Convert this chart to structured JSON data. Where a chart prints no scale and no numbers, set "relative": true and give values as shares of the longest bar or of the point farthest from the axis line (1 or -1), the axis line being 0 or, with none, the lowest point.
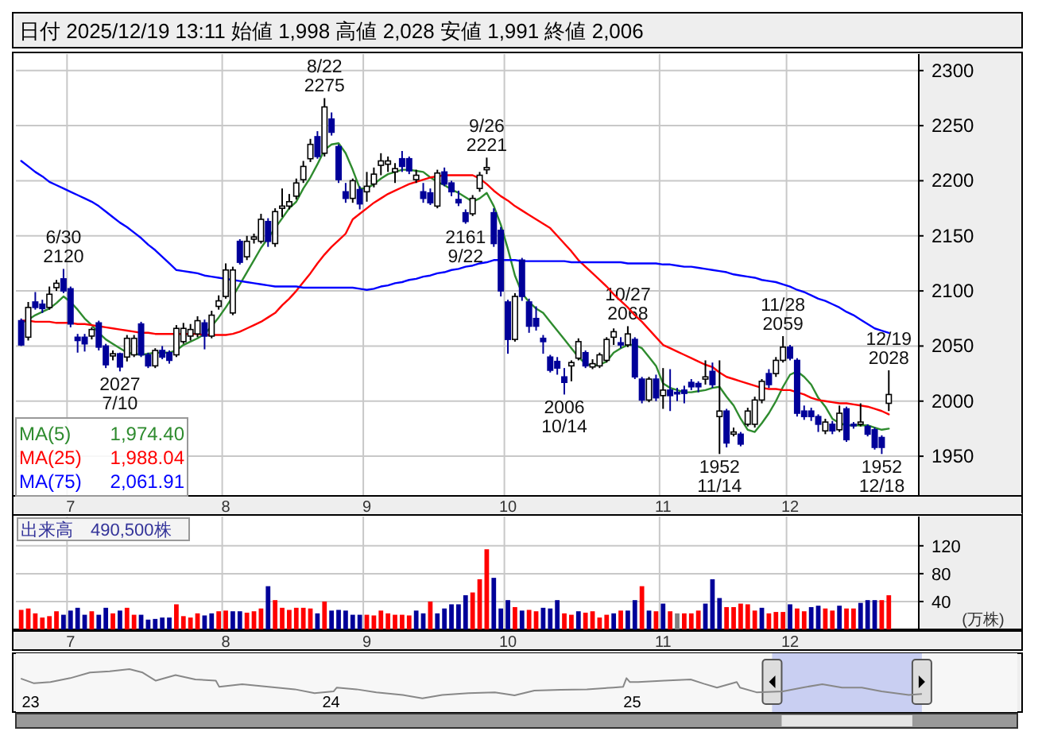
{
  "chart_data": [
    {
      "type": "candlestick",
      "title": "日付 2025/12/19 13:11 始値 1,998 高値 2,028 安値 1,991 終値 2,006",
      "categories": [
        null,
        null,
        null,
        null,
        null,
        null,
        null,
        "7",
        null,
        null,
        null,
        null,
        null,
        null,
        null,
        null,
        null,
        null,
        null,
        null,
        null,
        null,
        null,
        null,
        null,
        null,
        null,
        null,
        null,
        "8",
        null,
        null,
        null,
        null,
        null,
        null,
        null,
        null,
        null,
        null,
        null,
        null,
        null,
        null,
        null,
        null,
        null,
        null,
        null,
        "9",
        null,
        null,
        null,
        null,
        null,
        null,
        null,
        null,
        null,
        null,
        null,
        null,
        null,
        null,
        null,
        null,
        null,
        null,
        null,
        "10",
        null,
        null,
        null,
        null,
        null,
        null,
        null,
        null,
        null,
        null,
        null,
        null,
        null,
        null,
        null,
        null,
        null,
        null,
        null,
        null,
        null,
        "11",
        null,
        null,
        null,
        null,
        null,
        null,
        null,
        null,
        null,
        null,
        null,
        null,
        null,
        null,
        null,
        null,
        null,
        "12",
        null,
        null,
        null,
        null,
        null,
        null,
        null,
        null,
        null,
        null,
        null,
        null,
        null,
        null
      ],
      "ohlc": [
        [
          2073,
          2075,
          2050,
          2051
        ],
        [
          2058,
          2090,
          2055,
          2085
        ],
        [
          2090,
          2099,
          2083,
          2085
        ],
        [
          2088,
          2092,
          2080,
          2084
        ],
        [
          2085,
          2104,
          2083,
          2097
        ],
        [
          2103,
          2110,
          2100,
          2107
        ],
        [
          2111,
          2120,
          2098,
          2100
        ],
        [
          2102,
          2104,
          2067,
          2070
        ],
        [
          2058,
          2061,
          2044,
          2055
        ],
        [
          2058,
          2061,
          2045,
          2052
        ],
        [
          2059,
          2067,
          2056,
          2065
        ],
        [
          2071,
          2073,
          2046,
          2049
        ],
        [
          2050,
          2052,
          2030,
          2033
        ],
        [
          2041,
          2046,
          2037,
          2043
        ],
        [
          2043,
          2044,
          2027,
          2031
        ],
        [
          2040,
          2060,
          2036,
          2057
        ],
        [
          2042,
          2060,
          2040,
          2057
        ],
        [
          2070,
          2072,
          2040,
          2042
        ],
        [
          2042,
          2044,
          2030,
          2032
        ],
        [
          2032,
          2048,
          2030,
          2046
        ],
        [
          2046,
          2050,
          2038,
          2040
        ],
        [
          2044,
          2046,
          2034,
          2037
        ],
        [
          2042,
          2069,
          2040,
          2066
        ],
        [
          2054,
          2071,
          2052,
          2066
        ],
        [
          2059,
          2070,
          2055,
          2065
        ],
        [
          2061,
          2077,
          2058,
          2073
        ],
        [
          2071,
          2074,
          2047,
          2059
        ],
        [
          2059,
          2082,
          2057,
          2078
        ],
        [
          2086,
          2096,
          2083,
          2091
        ],
        [
          2095,
          2125,
          2093,
          2119
        ],
        [
          2080,
          2122,
          2078,
          2119
        ],
        [
          2145,
          2147,
          2124,
          2126
        ],
        [
          2131,
          2150,
          2128,
          2145
        ],
        [
          2147,
          2152,
          2143,
          2149
        ],
        [
          2145,
          2170,
          2143,
          2165
        ],
        [
          2163,
          2166,
          2140,
          2145
        ],
        [
          2143,
          2175,
          2140,
          2172
        ],
        [
          2175,
          2193,
          2167,
          2177
        ],
        [
          2177,
          2188,
          2174,
          2181
        ],
        [
          2186,
          2202,
          2183,
          2198
        ],
        [
          2201,
          2218,
          2198,
          2213
        ],
        [
          2220,
          2238,
          2217,
          2233
        ],
        [
          2240,
          2245,
          2220,
          2222
        ],
        [
          2225,
          2275,
          2222,
          2267
        ],
        [
          2256,
          2262,
          2241,
          2244
        ],
        [
          2231,
          2233,
          2198,
          2201
        ],
        [
          2190,
          2198,
          2180,
          2184
        ],
        [
          2184,
          2202,
          2180,
          2200
        ],
        [
          2192,
          2195,
          2174,
          2179
        ],
        [
          2190,
          2208,
          2181,
          2195
        ],
        [
          2197,
          2212,
          2194,
          2206
        ],
        [
          2214,
          2225,
          2205,
          2218
        ],
        [
          2215,
          2222,
          2208,
          2218
        ],
        [
          2208,
          2216,
          2198,
          2211
        ],
        [
          2220,
          2227,
          2208,
          2213
        ],
        [
          2220,
          2222,
          2206,
          2209
        ],
        [
          2201,
          2210,
          2198,
          2205
        ],
        [
          2190,
          2198,
          2180,
          2184
        ],
        [
          2189,
          2193,
          2178,
          2180
        ],
        [
          2177,
          2210,
          2175,
          2207
        ],
        [
          2208,
          2212,
          2195,
          2197
        ],
        [
          2198,
          2200,
          2186,
          2190
        ],
        [
          2183,
          2191,
          2177,
          2180
        ],
        [
          2171,
          2174,
          2161,
          2163
        ],
        [
          2170,
          2187,
          2168,
          2184
        ],
        [
          2193,
          2208,
          2190,
          2205
        ],
        [
          2210,
          2221,
          2206,
          2212
        ],
        [
          2171,
          2175,
          2140,
          2143
        ],
        [
          2155,
          2158,
          2095,
          2100
        ],
        [
          2090,
          2092,
          2043,
          2056
        ],
        [
          2056,
          2098,
          2054,
          2095
        ],
        [
          2128,
          2130,
          2091,
          2095
        ],
        [
          2090,
          2093,
          2062,
          2068
        ],
        [
          2075,
          2086,
          2064,
          2068
        ],
        [
          2057,
          2060,
          2043,
          2054
        ],
        [
          2040,
          2042,
          2026,
          2028
        ],
        [
          2036,
          2040,
          2024,
          2030
        ],
        [
          2022,
          2030,
          2006,
          2017
        ],
        [
          2032,
          2037,
          2018,
          2035
        ],
        [
          2039,
          2057,
          2037,
          2054
        ],
        [
          2044,
          2046,
          2030,
          2032
        ],
        [
          2031,
          2038,
          2029,
          2034
        ],
        [
          2032,
          2044,
          2030,
          2042
        ],
        [
          2037,
          2058,
          2035,
          2056
        ],
        [
          2058,
          2066,
          2051,
          2063
        ],
        [
          2053,
          2058,
          2048,
          2051
        ],
        [
          2051,
          2068,
          2049,
          2061
        ],
        [
          2056,
          2058,
          2020,
          2022
        ],
        [
          2020,
          2022,
          1998,
          2001
        ],
        [
          2001,
          2022,
          1999,
          2020
        ],
        [
          2020,
          2024,
          2000,
          2003
        ],
        [
          2005,
          2030,
          1993,
          2010
        ],
        [
          2010,
          2029,
          1991,
          2005
        ],
        [
          2008,
          2012,
          2000,
          2007
        ],
        [
          2010,
          2014,
          1998,
          2007
        ],
        [
          2017,
          2020,
          2010,
          2013
        ],
        [
          2016,
          2018,
          2008,
          2013
        ],
        [
          2020,
          2037,
          2015,
          2022
        ],
        [
          2027,
          2035,
          2012,
          2015
        ],
        [
          1986,
          2037,
          1952,
          1991
        ],
        [
          1991,
          1993,
          1958,
          1962
        ],
        [
          1970,
          1976,
          1968,
          1972
        ],
        [
          1970,
          1972,
          1959,
          1961
        ],
        [
          1979,
          1994,
          1977,
          1991
        ],
        [
          1979,
          2004,
          1976,
          2001
        ],
        [
          2001,
          2020,
          1998,
          2018
        ],
        [
          2025,
          2029,
          2012,
          2015
        ],
        [
          2025,
          2040,
          2022,
          2037
        ],
        [
          2037,
          2059,
          2035,
          2049
        ],
        [
          2049,
          2051,
          2037,
          2039
        ],
        [
          2037,
          2039,
          1986,
          1989
        ],
        [
          1991,
          1996,
          1983,
          1986
        ],
        [
          1991,
          1994,
          1982,
          1986
        ],
        [
          1986,
          1988,
          1972,
          1979
        ],
        [
          1973,
          1984,
          1970,
          1981
        ],
        [
          1979,
          1982,
          1970,
          1973
        ],
        [
          1974,
          1996,
          1972,
          1989
        ],
        [
          1993,
          1995,
          1963,
          1965
        ],
        [
          1979,
          1981,
          1975,
          1978
        ],
        [
          1979,
          1998,
          1977,
          1981
        ],
        [
          1977,
          1979,
          1968,
          1970
        ],
        [
          1974,
          1976,
          1956,
          1958
        ],
        [
          1967,
          1969,
          1952,
          1958
        ],
        [
          1998,
          2028,
          1991,
          2006
        ]
      ],
      "series": [
        {
          "name": "MA(5)",
          "type": "line",
          "color": "#2e8b2e",
          "values": [
            2071,
            2074,
            2078,
            2081,
            2084,
            2089,
            2095,
            2090,
            2083,
            2075,
            2069,
            2062,
            2056,
            2052,
            2048,
            2044,
            2043,
            2042,
            2043,
            2044,
            2044,
            2044,
            2046,
            2051,
            2054,
            2057,
            2061,
            2068,
            2076,
            2085,
            2095,
            2106,
            2117,
            2128,
            2139,
            2148,
            2157,
            2166,
            2175,
            2181,
            2193,
            2203,
            2215,
            2228,
            2233,
            2234,
            2225,
            2210,
            2193,
            2193,
            2197,
            2202,
            2206,
            2208,
            2210,
            2210,
            2209,
            2208,
            2203,
            2199,
            2196,
            2192,
            2189,
            2185,
            2181,
            2184,
            2189,
            2177,
            2160,
            2138,
            2114,
            2098,
            2090,
            2084,
            2080,
            2072,
            2064,
            2056,
            2048,
            2040,
            2034,
            2032,
            2033,
            2036,
            2044,
            2048,
            2051,
            2051,
            2048,
            2040,
            2032,
            2016,
            2012,
            2010,
            2008,
            2008,
            2009,
            2010,
            2012,
            2013,
            2004,
            1996,
            1984,
            1974,
            1972,
            1980,
            1989,
            2000,
            2013,
            2024,
            2027,
            2022,
            2015,
            2003,
            1995,
            1984,
            1980,
            1978,
            1978,
            1978,
            1978,
            1976,
            1974,
            1975
          ]
        },
        {
          "name": "MA(25)",
          "type": "line",
          "color": "#ff0000",
          "values": [
            2073,
            2073,
            2072,
            2072,
            2072,
            2071,
            2071,
            2071,
            2070,
            2070,
            2069,
            2068,
            2067,
            2066,
            2065,
            2064,
            2063,
            2062,
            2062,
            2061,
            2061,
            2061,
            2061,
            2061,
            2061,
            2061,
            2060,
            2060,
            2060,
            2060,
            2061,
            2063,
            2066,
            2069,
            2072,
            2076,
            2080,
            2087,
            2093,
            2100,
            2108,
            2116,
            2125,
            2133,
            2140,
            2146,
            2152,
            2165,
            2170,
            2175,
            2180,
            2184,
            2188,
            2191,
            2194,
            2197,
            2199,
            2201,
            2203,
            2204,
            2205,
            2205,
            2205,
            2205,
            2205,
            2202,
            2197,
            2191,
            2186,
            2182,
            2177,
            2173,
            2169,
            2165,
            2161,
            2157,
            2150,
            2143,
            2136,
            2128,
            2122,
            2116,
            2110,
            2104,
            2097,
            2091,
            2085,
            2078,
            2072,
            2065,
            2058,
            2051,
            2048,
            2045,
            2042,
            2039,
            2036,
            2033,
            2031,
            2026,
            2022,
            2020,
            2018,
            2016,
            2014,
            2012,
            2011,
            2011,
            2010,
            2010,
            2008,
            2006,
            2003,
            2001,
            2000,
            1999,
            1998,
            1998,
            1997,
            1996,
            1995,
            1993,
            1991,
            1988
          ]
        },
        {
          "name": "MA(75)",
          "type": "line",
          "color": "#0000ff",
          "values": [
            2218,
            2213,
            2208,
            2204,
            2199,
            2196,
            2193,
            2190,
            2187,
            2184,
            2181,
            2177,
            2172,
            2167,
            2162,
            2158,
            2153,
            2148,
            2142,
            2137,
            2131,
            2125,
            2119,
            2118,
            2117,
            2116,
            2114,
            2113,
            2112,
            2111,
            2110,
            2109,
            2108,
            2107,
            2106,
            2105,
            2104,
            2104,
            2104,
            2104,
            2103,
            2103,
            2103,
            2103,
            2103,
            2103,
            2103,
            2103,
            2102,
            2101,
            2102,
            2104,
            2105,
            2107,
            2108,
            2110,
            2111,
            2113,
            2114,
            2116,
            2117,
            2119,
            2120,
            2122,
            2123,
            2125,
            2126,
            2128,
            2128,
            2128,
            2128,
            2127,
            2127,
            2127,
            2127,
            2127,
            2127,
            2127,
            2126,
            2126,
            2126,
            2126,
            2126,
            2126,
            2126,
            2126,
            2125,
            2125,
            2125,
            2125,
            2125,
            2124,
            2124,
            2123,
            2122,
            2122,
            2121,
            2120,
            2119,
            2118,
            2117,
            2115,
            2114,
            2113,
            2112,
            2110,
            2109,
            2108,
            2106,
            2104,
            2101,
            2099,
            2096,
            2093,
            2091,
            2088,
            2085,
            2081,
            2078,
            2074,
            2070,
            2066,
            2064,
            2062
          ]
        }
      ],
      "ylim": [
        1914,
        2315
      ],
      "yticks": [
        1950,
        2000,
        2050,
        2100,
        2150,
        2200,
        2250,
        2300
      ],
      "grid": true,
      "legend": "bottom left",
      "annotations": [
        {
          "text": "6/30\n2120",
          "y": 2120
        },
        {
          "text": "2027\n7/10",
          "y": 2027
        },
        {
          "text": "8/22\n2275",
          "y": 2275
        },
        {
          "text": "2161\n9/22",
          "y": 2161
        },
        {
          "text": "9/26\n2221",
          "y": 2221
        },
        {
          "text": "2006\n10/14",
          "y": 2006
        },
        {
          "text": "10/27\n2068",
          "y": 2068
        },
        {
          "text": "1952\n11/14",
          "y": 1952
        },
        {
          "text": "11/28\n2059",
          "y": 2059
        },
        {
          "text": "1952\n12/18",
          "y": 1952
        },
        {
          "text": "12/19\n2028",
          "y": 2028
        },
        "1,974.40",
        "1,988.04",
        "2,061.91"
      ]
    },
    {
      "type": "bar",
      "title": "出来高　490,500株",
      "ylabel": "(万株)",
      "categories": [
        null,
        null,
        null,
        null,
        null,
        null,
        null,
        "7",
        null,
        null,
        null,
        null,
        null,
        null,
        null,
        null,
        null,
        null,
        null,
        null,
        null,
        null,
        null,
        null,
        null,
        null,
        null,
        null,
        null,
        "8",
        null,
        null,
        null,
        null,
        null,
        null,
        null,
        null,
        null,
        null,
        null,
        null,
        null,
        null,
        null,
        null,
        null,
        null,
        null,
        "9",
        null,
        null,
        null,
        null,
        null,
        null,
        null,
        null,
        null,
        null,
        null,
        null,
        null,
        null,
        null,
        null,
        null,
        null,
        null,
        "10",
        null,
        null,
        null,
        null,
        null,
        null,
        null,
        null,
        null,
        null,
        null,
        null,
        null,
        null,
        null,
        null,
        null,
        null,
        null,
        null,
        null,
        "11",
        null,
        null,
        null,
        null,
        null,
        null,
        null,
        null,
        null,
        null,
        null,
        null,
        null,
        null,
        null,
        null,
        null,
        "12",
        null,
        null,
        null,
        null,
        null,
        null,
        null,
        null,
        null,
        null,
        null,
        null,
        null,
        null
      ],
      "values": [
        28,
        30,
        23,
        17,
        19,
        26,
        21,
        27,
        31,
        21,
        26,
        21,
        31,
        23,
        27,
        31,
        21,
        21,
        14,
        15,
        17,
        17,
        36,
        19,
        17,
        23,
        20,
        23,
        26,
        27,
        26,
        26,
        24,
        26,
        30,
        62,
        42,
        31,
        28,
        31,
        31,
        30,
        23,
        40,
        27,
        28,
        27,
        21,
        21,
        21,
        20,
        27,
        23,
        21,
        21,
        20,
        27,
        23,
        40,
        23,
        30,
        36,
        36,
        49,
        53,
        72,
        115,
        74,
        30,
        42,
        32,
        27,
        28,
        26,
        31,
        30,
        42,
        23,
        21,
        26,
        24,
        26,
        17,
        21,
        23,
        27,
        27,
        42,
        62,
        27,
        26,
        37,
        26,
        23,
        23,
        23,
        27,
        37,
        72,
        45,
        32,
        32,
        37,
        36,
        27,
        31,
        23,
        25,
        25,
        36,
        30,
        26,
        32,
        34,
        30,
        27,
        34,
        30,
        30,
        38,
        42,
        42,
        42,
        49
      ],
      "colors": [
        "#ff0000",
        "#ff0000",
        "#ff0000",
        "#ff0000",
        "#ff0000",
        "#ff0000",
        "#000099",
        "#000099",
        "#000099",
        "#000099",
        "#ff0000",
        "#000099",
        "#000099",
        "#ff0000",
        "#000099",
        "#ff0000",
        "#ff0000",
        "#000099",
        "#000099",
        "#000099",
        "#000099",
        "#000099",
        "#ff0000",
        "#ff0000",
        "#ff0000",
        "#ff0000",
        "#000099",
        "#000099",
        "#ff0000",
        "#ff0000",
        "#000099",
        "#000099",
        "#ff0000",
        "#ff0000",
        "#ff0000",
        "#000099",
        "#ff0000",
        "#ff0000",
        "#ff0000",
        "#ff0000",
        "#ff0000",
        "#ff0000",
        "#000099",
        "#ff0000",
        "#000099",
        "#000099",
        "#000099",
        "#000099",
        "#000099",
        "#ff0000",
        "#ff0000",
        "#ff0000",
        "#ff0000",
        "#ff0000",
        "#ff0000",
        "#ff0000",
        "#000099",
        "#000099",
        "#ff0000",
        "#000099",
        "#000099",
        "#000099",
        "#000099",
        "#000099",
        "#ff0000",
        "#ff0000",
        "#ff0000",
        "#000099",
        "#000099",
        "#000099",
        "#ff0000",
        "#000099",
        "#ff0000",
        "#ff0000",
        "#000099",
        "#000099",
        "#000099",
        "#ff0000",
        "#ff0000",
        "#000099",
        "#ff0000",
        "#ff0000",
        "#ff0000",
        "#ff0000",
        "#000099",
        "#ff0000",
        "#000099",
        "#000099",
        "#ff0000",
        "#000099",
        "#ff0000",
        "#000099",
        "#ff0000",
        "#808080",
        "#ff0000",
        "#ff0000",
        "#ff0000",
        "#000099",
        "#000099",
        "#000099",
        "#ff0000",
        "#ff0000",
        "#ff0000",
        "#ff0000",
        "#ff0000",
        "#000099",
        "#ff0000",
        "#ff0000",
        "#ff0000",
        "#000099",
        "#ff0000",
        "#ff0000",
        "#000099",
        "#000099",
        "#ff0000",
        "#ff0000",
        "#000099",
        "#ff0000",
        "#ff0000",
        "#000099",
        "#000099",
        "#000099",
        "#ff0000",
        "#ff0000"
      ],
      "ylim": [
        0,
        162
      ],
      "yticks": [
        40,
        80,
        120
      ],
      "grid": true
    },
    {
      "type": "line",
      "relative": true,
      "x": [
        "2022-12-20",
        "2023-01-05",
        "2023-01-25",
        "2023-02-18",
        "2023-03-14",
        "2023-04-07",
        "2023-05-01",
        "2023-05-17",
        "2023-06-02",
        "2023-06-26",
        "2023-07-20",
        "2023-08-14",
        "2023-08-18",
        "2023-09-15",
        "2023-10-17",
        "2023-11-18",
        "2023-12-12",
        "2024-01-04",
        "2024-01-08",
        "2024-02-01",
        "2024-02-25",
        "2024-03-28",
        "2024-04-21",
        "2024-05-15",
        "2024-06-16",
        "2024-07-18",
        "2024-08-11",
        "2024-09-04",
        "2024-10-06",
        "2024-11-07",
        "2024-12-09",
        "2024-12-21",
        "2024-12-25",
        "2024-12-29",
        "2025-01-08",
        "2025-02-09",
        "2025-03-13",
        "2025-03-29",
        "2025-04-14",
        "2025-05-08",
        "2025-05-12",
        "2025-06-01",
        "2025-07-03",
        "2025-07-27",
        "2025-08-20",
        "2025-09-13",
        "2025-10-07",
        "2025-10-31",
        "2025-12-03",
        "2025-12-19"
      ],
      "series": [
        {
          "color": "#888888",
          "values": [
            0.78,
            0.67,
            0.7,
            0.79,
            0.92,
            0.95,
            1,
            0.92,
            0.73,
            0.86,
            0.76,
            0.73,
            0.59,
            0.65,
            0.59,
            0.53,
            0.44,
            0.48,
            0.57,
            0.53,
            0.46,
            0.4,
            0.32,
            0.4,
            0.44,
            0.46,
            0.39,
            0.5,
            0.52,
            0.53,
            0.57,
            0.59,
            0.79,
            0.7,
            0.7,
            0.73,
            0.76,
            0.66,
            0.57,
            0.7,
            0.57,
            0.46,
            0.48,
            0.57,
            0.65,
            0.57,
            0.57,
            0.48,
            0.4,
            0.42
          ]
        }
      ],
      "xlim": [
        "2022-12-14",
        "2026-04-14"
      ],
      "xticks": [
        {
          "value": "2023-01-01",
          "label": "23"
        },
        {
          "value": "2024-01-01",
          "label": "24"
        },
        {
          "value": "2025-01-01",
          "label": "25"
        }
      ],
      "bands": [
        {
          "axis": "x",
          "from": "2025-06-20",
          "to": "2025-12-19",
          "color": "#aab4ee"
        }
      ]
    }
  ]
}
